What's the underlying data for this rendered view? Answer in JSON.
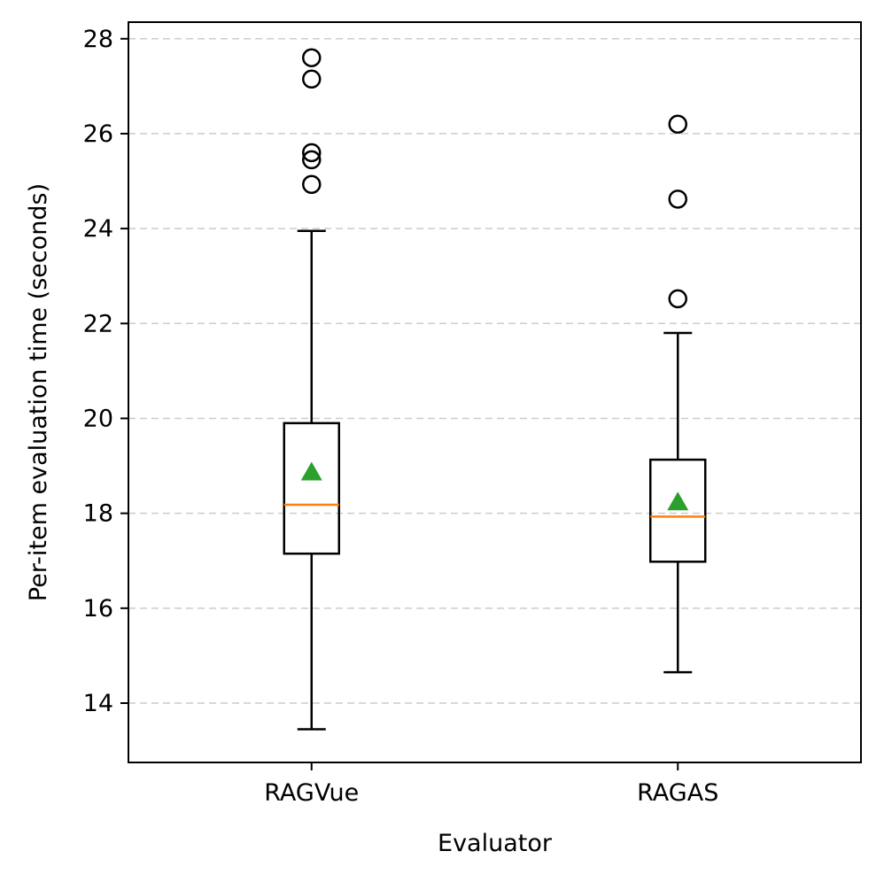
{
  "chart_data": {
    "type": "boxplot",
    "title": "",
    "xlabel": "Evaluator",
    "ylabel": "Per-item evaluation time (seconds)",
    "ylim": [
      12.75,
      28.35
    ],
    "yticks": [
      14,
      16,
      18,
      20,
      22,
      24,
      26,
      28
    ],
    "ytick_labels": [
      "14",
      "16",
      "18",
      "20",
      "22",
      "24",
      "26",
      "28"
    ],
    "grid": "y, dashed",
    "categories": [
      "RAGVue",
      "RAGAS"
    ],
    "series": [
      {
        "name": "RAGVue",
        "whisker_low": 13.45,
        "q1": 17.15,
        "median": 18.18,
        "q3": 19.9,
        "whisker_high": 23.95,
        "mean": 18.88,
        "outliers": [
          24.93,
          25.45,
          25.6,
          27.15,
          27.6
        ]
      },
      {
        "name": "RAGAS",
        "whisker_low": 14.65,
        "q1": 16.98,
        "median": 17.93,
        "q3": 19.13,
        "whisker_high": 21.8,
        "mean": 18.25,
        "outliers": [
          22.52,
          24.62,
          26.2
        ]
      }
    ],
    "colors": {
      "median": "#ff7f0e",
      "mean": "#2ca02c",
      "box": "#000000",
      "grid": "#cccccc"
    }
  }
}
